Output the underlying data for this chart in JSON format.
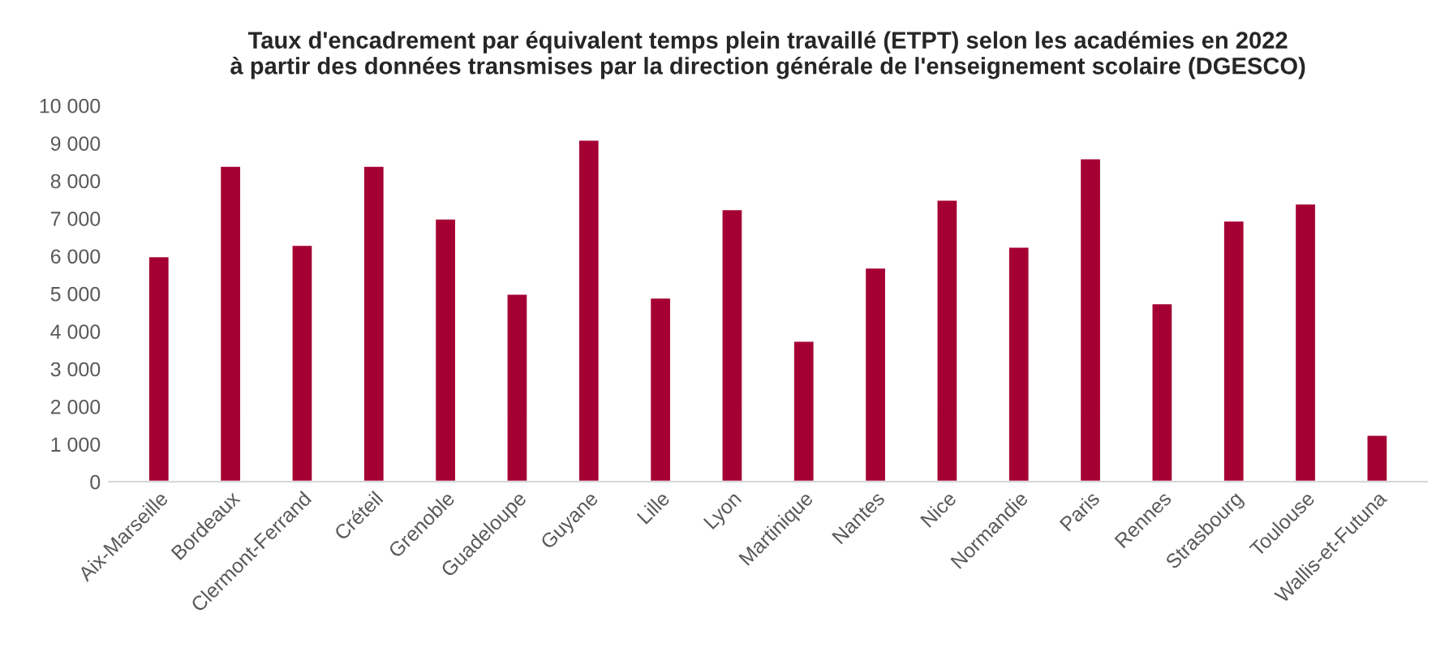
{
  "chart_data": {
    "type": "bar",
    "title": "Taux d'encadrement par équivalent temps plein travaillé (ETPT) selon les académies en 2022\nà partir des données transmises par la direction générale de l'enseignement scolaire (DGESCO)",
    "categories": [
      "Aix-Marseille",
      "Bordeaux",
      "Clermont-Ferrand",
      "Créteil",
      "Grenoble",
      "Guadeloupe",
      "Guyane",
      "Lille",
      "Lyon",
      "Martinique",
      "Nantes",
      "Nice",
      "Normandie",
      "Paris",
      "Rennes",
      "Strasbourg",
      "Toulouse",
      "Wallis-et-Futuna"
    ],
    "values": [
      6000,
      8400,
      6300,
      8400,
      7000,
      5000,
      9100,
      4900,
      7250,
      3750,
      5700,
      7500,
      6250,
      8600,
      4750,
      6950,
      7400,
      1250
    ],
    "color": "#a50034",
    "ylim": [
      0,
      10000
    ],
    "yticks": [
      {
        "value": 0,
        "label": "0"
      },
      {
        "value": 1000,
        "label": "1 000"
      },
      {
        "value": 2000,
        "label": "2 000"
      },
      {
        "value": 3000,
        "label": "3 000"
      },
      {
        "value": 4000,
        "label": "4 000"
      },
      {
        "value": 5000,
        "label": "5 000"
      },
      {
        "value": 6000,
        "label": "6 000"
      },
      {
        "value": 7000,
        "label": "7 000"
      },
      {
        "value": 8000,
        "label": "8 000"
      },
      {
        "value": 9000,
        "label": "9 000"
      },
      {
        "value": 10000,
        "label": "10 000"
      }
    ],
    "grid": false
  }
}
